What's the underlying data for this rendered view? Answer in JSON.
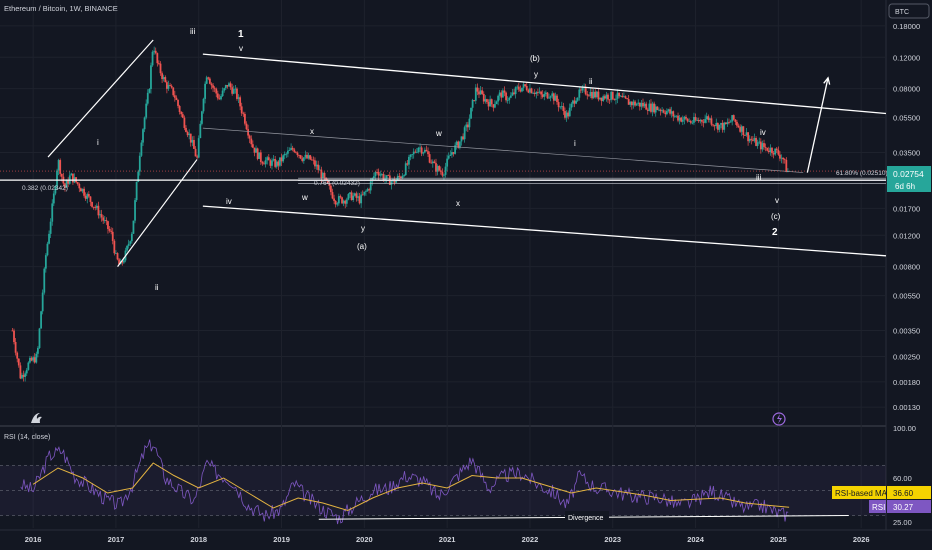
{
  "header": {
    "symbol_title": "Ethereum / Bitcoin, 1W, BINANCE"
  },
  "price_axis": {
    "currency_button": "BTC",
    "ticks": [
      "0.18000",
      "0.12000",
      "0.08000",
      "0.05500",
      "0.03500",
      "0.01700",
      "0.01200",
      "0.00800",
      "0.00550",
      "0.00350",
      "0.00250",
      "0.00180",
      "0.00130"
    ],
    "last_price": "0.02754",
    "countdown": "6d 6h"
  },
  "time_axis": {
    "ticks": [
      "2016",
      "2017",
      "2018",
      "2019",
      "2020",
      "2021",
      "2022",
      "2023",
      "2024",
      "2025",
      "2026"
    ]
  },
  "rsi": {
    "title": "RSI (14, close)",
    "ticks": [
      "100.00",
      "60.00",
      "25.00"
    ],
    "ma_label": "RSI-based MA",
    "ma_value": "36.60",
    "rsi_label": "RSI",
    "rsi_value": "30.27",
    "divergence_label": "Divergence"
  },
  "fib_labels": {
    "f0382": "0.382 (0.02342)",
    "f0764": "0.764 (0.02432)",
    "f618": "61.80% (0.02510)"
  },
  "wave_labels": {
    "i_2016": "i",
    "ii_2016": "ii",
    "iii_2017": "iii",
    "iv_2018": "iv",
    "v_2018": "v",
    "one": "1",
    "w_2018": "w",
    "x_2019": "x",
    "y_2019": "y",
    "a_2019": "(a)",
    "w_2020": "w",
    "x_2020": "x",
    "b_2021": "(b)",
    "y_2022": "y",
    "i_2022": "i",
    "ii_2022": "ii",
    "iii_2024": "iii",
    "iv_2024": "iv",
    "v_2025": "v",
    "c_2025": "(c)",
    "two": "2"
  },
  "colors": {
    "background": "#131722",
    "up_candle": "#26a69a",
    "down_candle": "#ef5350",
    "rsi_line": "#7e57c2",
    "rsi_ma": "#e3b341",
    "last_price_badge": "#26a69a",
    "rsi_badge": "#7e57c2",
    "ma_badge": "#f5d300"
  },
  "chart_data": {
    "type": "candlestick",
    "title": "Ethereum / Bitcoin, 1W, BINANCE",
    "y_scale": "log",
    "ylim": [
      0.0011,
      0.21
    ],
    "xlim": [
      2015.6,
      2026.3
    ],
    "price_path": [
      [
        2015.75,
        0.0035
      ],
      [
        2015.85,
        0.0019
      ],
      [
        2015.95,
        0.0023
      ],
      [
        2016.05,
        0.0025
      ],
      [
        2016.15,
        0.009
      ],
      [
        2016.25,
        0.02
      ],
      [
        2016.3,
        0.032
      ],
      [
        2016.38,
        0.022
      ],
      [
        2016.45,
        0.026
      ],
      [
        2016.55,
        0.023
      ],
      [
        2016.65,
        0.02
      ],
      [
        2016.8,
        0.016
      ],
      [
        2016.95,
        0.012
      ],
      [
        2017.0,
        0.009
      ],
      [
        2017.05,
        0.008
      ],
      [
        2017.12,
        0.0095
      ],
      [
        2017.2,
        0.013
      ],
      [
        2017.3,
        0.04
      ],
      [
        2017.4,
        0.08
      ],
      [
        2017.45,
        0.145
      ],
      [
        2017.5,
        0.11
      ],
      [
        2017.6,
        0.085
      ],
      [
        2017.7,
        0.075
      ],
      [
        2017.8,
        0.055
      ],
      [
        2017.9,
        0.042
      ],
      [
        2017.98,
        0.032
      ],
      [
        2018.05,
        0.07
      ],
      [
        2018.1,
        0.1
      ],
      [
        2018.15,
        0.085
      ],
      [
        2018.25,
        0.07
      ],
      [
        2018.35,
        0.085
      ],
      [
        2018.45,
        0.075
      ],
      [
        2018.55,
        0.055
      ],
      [
        2018.65,
        0.038
      ],
      [
        2018.75,
        0.032
      ],
      [
        2018.85,
        0.031
      ],
      [
        2018.95,
        0.03
      ],
      [
        2019.05,
        0.034
      ],
      [
        2019.15,
        0.037
      ],
      [
        2019.25,
        0.033
      ],
      [
        2019.35,
        0.032
      ],
      [
        2019.45,
        0.028
      ],
      [
        2019.55,
        0.023
      ],
      [
        2019.65,
        0.019
      ],
      [
        2019.75,
        0.019
      ],
      [
        2019.85,
        0.02
      ],
      [
        2019.95,
        0.019
      ],
      [
        2020.05,
        0.022
      ],
      [
        2020.15,
        0.028
      ],
      [
        2020.25,
        0.025
      ],
      [
        2020.35,
        0.024
      ],
      [
        2020.45,
        0.026
      ],
      [
        2020.55,
        0.032
      ],
      [
        2020.65,
        0.038
      ],
      [
        2020.75,
        0.035
      ],
      [
        2020.85,
        0.029
      ],
      [
        2020.95,
        0.027
      ],
      [
        2021.05,
        0.035
      ],
      [
        2021.15,
        0.04
      ],
      [
        2021.25,
        0.05
      ],
      [
        2021.35,
        0.08
      ],
      [
        2021.45,
        0.07
      ],
      [
        2021.55,
        0.065
      ],
      [
        2021.65,
        0.075
      ],
      [
        2021.75,
        0.07
      ],
      [
        2021.85,
        0.08
      ],
      [
        2021.95,
        0.082
      ],
      [
        2022.05,
        0.078
      ],
      [
        2022.15,
        0.072
      ],
      [
        2022.25,
        0.076
      ],
      [
        2022.35,
        0.065
      ],
      [
        2022.45,
        0.056
      ],
      [
        2022.55,
        0.072
      ],
      [
        2022.65,
        0.078
      ],
      [
        2022.75,
        0.075
      ],
      [
        2022.85,
        0.072
      ],
      [
        2022.95,
        0.073
      ],
      [
        2023.05,
        0.072
      ],
      [
        2023.15,
        0.068
      ],
      [
        2023.25,
        0.066
      ],
      [
        2023.35,
        0.065
      ],
      [
        2023.45,
        0.063
      ],
      [
        2023.55,
        0.062
      ],
      [
        2023.65,
        0.06
      ],
      [
        2023.75,
        0.056
      ],
      [
        2023.85,
        0.054
      ],
      [
        2023.95,
        0.052
      ],
      [
        2024.05,
        0.053
      ],
      [
        2024.15,
        0.055
      ],
      [
        2024.25,
        0.05
      ],
      [
        2024.35,
        0.049
      ],
      [
        2024.45,
        0.054
      ],
      [
        2024.55,
        0.048
      ],
      [
        2024.65,
        0.042
      ],
      [
        2024.75,
        0.039
      ],
      [
        2024.85,
        0.037
      ],
      [
        2024.95,
        0.036
      ],
      [
        2025.05,
        0.033
      ],
      [
        2025.1,
        0.028
      ],
      [
        2025.13,
        0.027
      ]
    ],
    "rsi_series": [
      [
        2015.85,
        55
      ],
      [
        2016.0,
        50
      ],
      [
        2016.2,
        78
      ],
      [
        2016.35,
        82
      ],
      [
        2016.5,
        62
      ],
      [
        2016.7,
        52
      ],
      [
        2016.9,
        42
      ],
      [
        2017.05,
        38
      ],
      [
        2017.2,
        55
      ],
      [
        2017.35,
        82
      ],
      [
        2017.45,
        88
      ],
      [
        2017.6,
        60
      ],
      [
        2017.8,
        48
      ],
      [
        2017.95,
        42
      ],
      [
        2018.1,
        72
      ],
      [
        2018.2,
        65
      ],
      [
        2018.4,
        58
      ],
      [
        2018.6,
        38
      ],
      [
        2018.8,
        30
      ],
      [
        2019.0,
        35
      ],
      [
        2019.15,
        56
      ],
      [
        2019.3,
        45
      ],
      [
        2019.5,
        35
      ],
      [
        2019.7,
        28
      ],
      [
        2019.9,
        40
      ],
      [
        2020.1,
        50
      ],
      [
        2020.3,
        52
      ],
      [
        2020.5,
        62
      ],
      [
        2020.7,
        58
      ],
      [
        2020.9,
        45
      ],
      [
        2021.1,
        60
      ],
      [
        2021.3,
        75
      ],
      [
        2021.5,
        52
      ],
      [
        2021.7,
        62
      ],
      [
        2021.9,
        64
      ],
      [
        2022.1,
        55
      ],
      [
        2022.3,
        48
      ],
      [
        2022.45,
        38
      ],
      [
        2022.6,
        62
      ],
      [
        2022.8,
        52
      ],
      [
        2023.0,
        50
      ],
      [
        2023.2,
        46
      ],
      [
        2023.4,
        45
      ],
      [
        2023.6,
        44
      ],
      [
        2023.8,
        38
      ],
      [
        2024.0,
        42
      ],
      [
        2024.2,
        50
      ],
      [
        2024.4,
        42
      ],
      [
        2024.6,
        36
      ],
      [
        2024.8,
        38
      ],
      [
        2025.0,
        32
      ],
      [
        2025.13,
        30.27
      ]
    ],
    "rsi_ma_series": [
      [
        2016.0,
        55
      ],
      [
        2016.3,
        68
      ],
      [
        2016.6,
        60
      ],
      [
        2016.9,
        48
      ],
      [
        2017.2,
        52
      ],
      [
        2017.45,
        72
      ],
      [
        2017.7,
        62
      ],
      [
        2018.0,
        52
      ],
      [
        2018.3,
        60
      ],
      [
        2018.6,
        48
      ],
      [
        2018.9,
        36
      ],
      [
        2019.2,
        44
      ],
      [
        2019.5,
        40
      ],
      [
        2019.8,
        34
      ],
      [
        2020.1,
        44
      ],
      [
        2020.4,
        52
      ],
      [
        2020.7,
        56
      ],
      [
        2021.0,
        52
      ],
      [
        2021.3,
        62
      ],
      [
        2021.6,
        60
      ],
      [
        2021.9,
        60
      ],
      [
        2022.2,
        54
      ],
      [
        2022.5,
        48
      ],
      [
        2022.8,
        52
      ],
      [
        2023.1,
        49
      ],
      [
        2023.4,
        46
      ],
      [
        2023.7,
        42
      ],
      [
        2024.0,
        43
      ],
      [
        2024.3,
        44
      ],
      [
        2024.6,
        40
      ],
      [
        2024.9,
        38
      ],
      [
        2025.13,
        36.6
      ]
    ],
    "rsi_ylim": [
      20,
      100
    ],
    "rsi_bands": [
      30,
      70
    ],
    "fib_levels": [
      0.02342,
      0.02432,
      0.0251
    ],
    "channel_upper": [
      [
        2018.05,
        0.125
      ],
      [
        2026.3,
        0.058
      ]
    ],
    "channel_lower": [
      [
        2018.05,
        0.0175
      ],
      [
        2026.3,
        0.0092
      ]
    ],
    "channel_mid": [
      [
        2018.05,
        0.048
      ],
      [
        2025.3,
        0.027
      ]
    ],
    "impulse_lines": [
      [
        [
          2016.18,
          0.033
        ],
        [
          2017.45,
          0.15
        ]
      ],
      [
        [
          2017.02,
          0.008
        ],
        [
          2017.98,
          0.032
        ]
      ],
      [
        [
          2015.6,
          0.0245
        ],
        [
          2026.3,
          0.0245
        ]
      ]
    ],
    "arrow": [
      [
        2025.35,
        0.027
      ],
      [
        2025.6,
        0.092
      ]
    ],
    "divergence_line": [
      [
        2019.45,
        27
      ],
      [
        2025.85,
        30
      ]
    ]
  }
}
